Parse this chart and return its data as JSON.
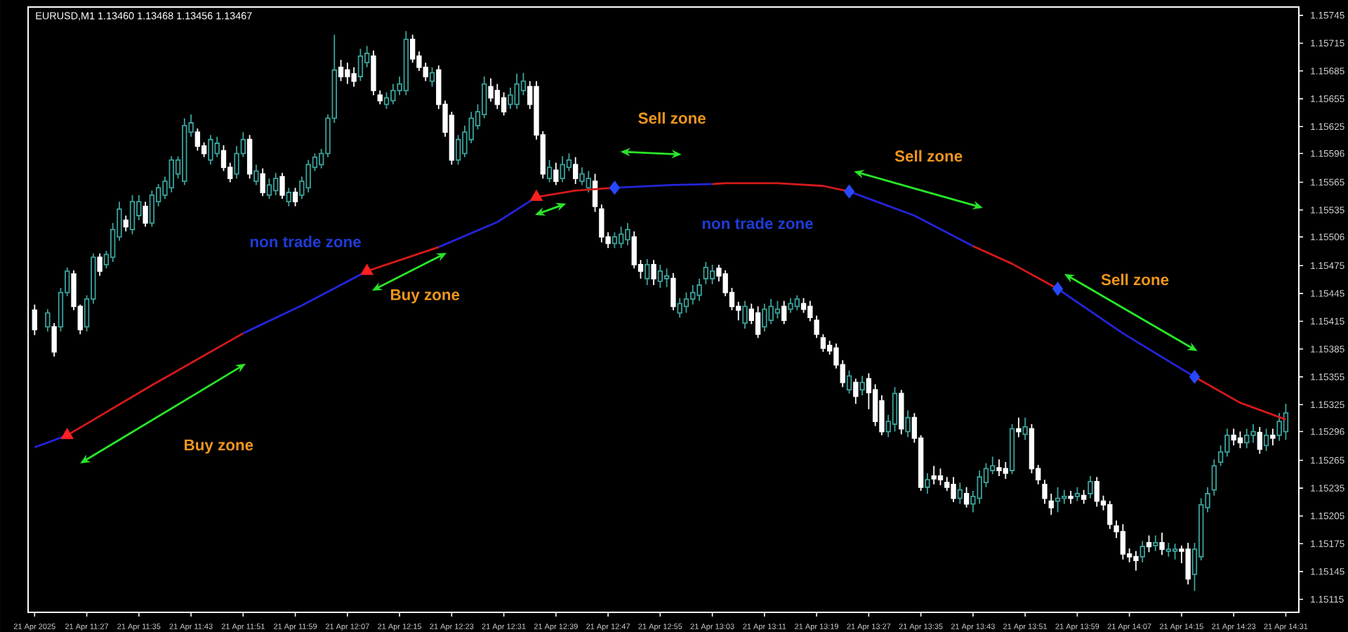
{
  "chart_data": {
    "type": "candlestick",
    "title": "EURUSD,M1 1.13460 1.13468 1.13456 1.13467",
    "annotations": [
      "Buy zone",
      "non trade zone",
      "Buy zone",
      "Sell zone",
      "non trade zone",
      "Sell zone",
      "Sell zone"
    ],
    "xlim": [
      "2025-04-21T11:18",
      "2025-04-21T14:33"
    ],
    "ylim": [
      1.15101,
      1.15754
    ],
    "xticks": [
      {
        "value": "2025-04-21T11:19",
        "label": "21 Apr 2025"
      },
      {
        "value": "2025-04-21T11:27",
        "label": "21 Apr 11:27"
      },
      {
        "value": "2025-04-21T11:35",
        "label": "21 Apr 11:35"
      },
      {
        "value": "2025-04-21T11:43",
        "label": "21 Apr 11:43"
      },
      {
        "value": "2025-04-21T11:51",
        "label": "21 Apr 11:51"
      },
      {
        "value": "2025-04-21T11:59",
        "label": "21 Apr 11:59"
      },
      {
        "value": "2025-04-21T12:07",
        "label": "21 Apr 12:07"
      },
      {
        "value": "2025-04-21T12:15",
        "label": "21 Apr 12:15"
      },
      {
        "value": "2025-04-21T12:23",
        "label": "21 Apr 12:23"
      },
      {
        "value": "2025-04-21T12:31",
        "label": "21 Apr 12:31"
      },
      {
        "value": "2025-04-21T12:39",
        "label": "21 Apr 12:39"
      },
      {
        "value": "2025-04-21T12:47",
        "label": "21 Apr 12:47"
      },
      {
        "value": "2025-04-21T12:55",
        "label": "21 Apr 12:55"
      },
      {
        "value": "2025-04-21T13:03",
        "label": "21 Apr 13:03"
      },
      {
        "value": "2025-04-21T13:11",
        "label": "21 Apr 13:11"
      },
      {
        "value": "2025-04-21T13:19",
        "label": "21 Apr 13:19"
      },
      {
        "value": "2025-04-21T13:27",
        "label": "21 Apr 13:27"
      },
      {
        "value": "2025-04-21T13:35",
        "label": "21 Apr 13:35"
      },
      {
        "value": "2025-04-21T13:43",
        "label": "21 Apr 13:43"
      },
      {
        "value": "2025-04-21T13:51",
        "label": "21 Apr 13:51"
      },
      {
        "value": "2025-04-21T13:59",
        "label": "21 Apr 13:59"
      },
      {
        "value": "2025-04-21T14:07",
        "label": "21 Apr 14:07"
      },
      {
        "value": "2025-04-21T14:15",
        "label": "21 Apr 14:15"
      },
      {
        "value": "2025-04-21T14:23",
        "label": "21 Apr 14:23"
      },
      {
        "value": "2025-04-21T14:31",
        "label": "21 Apr 14:31"
      }
    ],
    "yticks": [
      1.15745,
      1.15715,
      1.15685,
      1.15655,
      1.15625,
      1.15596,
      1.15565,
      1.15535,
      1.15506,
      1.15475,
      1.15445,
      1.15415,
      1.15385,
      1.15355,
      1.15325,
      1.15296,
      1.15265,
      1.15235,
      1.15205,
      1.15175,
      1.15145,
      1.15115
    ],
    "series": [
      {
        "colors": [
          "#ffffff",
          "#3aa39c",
          "#ffffff",
          "#3aa39c",
          "#3aa39c",
          "#ffffff",
          "#ffffff",
          "#3aa39c",
          "#3aa39c",
          "#ffffff",
          "#3aa39c",
          "#3aa39c",
          "#3aa39c",
          "#ffffff",
          "#3aa39c",
          "#3aa39c",
          "#ffffff",
          "#3aa39c",
          "#3aa39c",
          "#3aa39c",
          "#3aa39c",
          "#3aa39c",
          "#3aa39c",
          "#3aa39c",
          "#ffffff",
          "#ffffff",
          "#3aa39c",
          "#3aa39c",
          "#ffffff",
          "#ffffff",
          "#3aa39c",
          "#3aa39c",
          "#ffffff",
          "#3aa39c",
          "#ffffff",
          "#3aa39c",
          "#3aa39c",
          "#ffffff",
          "#3aa39c",
          "#ffffff",
          "#3aa39c",
          "#3aa39c",
          "#3aa39c",
          "#3aa39c",
          "#3aa39c",
          "#3aa39c",
          "#ffffff",
          "#ffffff",
          "#ffffff",
          "#3aa39c",
          "#3aa39c",
          "#ffffff",
          "#ffffff",
          "#3aa39c",
          "#3aa39c",
          "#3aa39c",
          "#3aa39c",
          "#ffffff",
          "#ffffff",
          "#ffffff",
          "#3aa39c",
          "#ffffff",
          "#ffffff",
          "#ffffff",
          "#3aa39c",
          "#3aa39c",
          "#3aa39c",
          "#3aa39c",
          "#3aa39c",
          "#ffffff",
          "#ffffff",
          "#ffffff",
          "#3aa39c",
          "#3aa39c",
          "#3aa39c",
          "#ffffff",
          "#ffffff",
          "#ffffff",
          "#3aa39c",
          "#ffffff",
          "#3aa39c",
          "#3aa39c",
          "#ffffff",
          "#3aa39c",
          "#3aa39c",
          "#ffffff",
          "#ffffff",
          "#ffffff",
          "#3aa39c",
          "#3aa39c",
          "#3aa39c",
          "#ffffff",
          "#ffffff",
          "#3aa39c",
          "#ffffff",
          "#3aa39c",
          "#3aa39c",
          "#ffffff",
          "#3aa39c",
          "#3aa39c",
          "#3aa39c",
          "#3aa39c",
          "#3aa39c",
          "#3aa39c",
          "#ffffff",
          "#ffffff",
          "#ffffff",
          "#ffffff",
          "#3aa39c",
          "#ffffff",
          "#ffffff",
          "#3aa39c",
          "#3aa39c",
          "#3aa39c",
          "#ffffff",
          "#3aa39c",
          "#3aa39c",
          "#ffffff",
          "#ffffff",
          "#ffffff",
          "#ffffff",
          "#ffffff",
          "#ffffff",
          "#ffffff",
          "#3aa39c",
          "#ffffff",
          "#3aa39c",
          "#ffffff",
          "#ffffff",
          "#ffffff",
          "#3aa39c",
          "#3aa39c",
          "#ffffff",
          "#3aa39c",
          "#ffffff",
          "#ffffff",
          "#3aa39c",
          "#ffffff",
          "#ffffff",
          "#ffffff",
          "#ffffff",
          "#3aa39c",
          "#ffffff",
          "#3aa39c",
          "#3aa39c",
          "#3aa39c",
          "#3aa39c",
          "#ffffff",
          "#ffffff",
          "#3aa39c",
          "#ffffff",
          "#3aa39c",
          "#ffffff",
          "#ffffff",
          "#ffffff",
          "#ffffff",
          "#3aa39c",
          "#3aa39c",
          "#ffffff",
          "#3aa39c",
          "#ffffff",
          "#3aa39c",
          "#ffffff",
          "#ffffff",
          "#ffffff",
          "#ffffff",
          "#ffffff",
          "#ffffff",
          "#ffffff",
          "#3aa39c",
          "#ffffff",
          "#3aa39c",
          "#ffffff",
          "#3aa39c",
          "#3aa39c",
          "#ffffff",
          "#ffffff",
          "#3aa39c",
          "#3aa39c",
          "#3aa39c",
          "#3aa39c",
          "#3aa39c",
          "#3aa39c",
          "#ffffff",
          "#ffffff",
          "#3aa39c",
          "#3aa39c",
          "#ffffff",
          "#3aa39c",
          "#ffffff",
          "#3aa39c",
          "#3aa39c"
        ],
        "x": [
          "2025-04-21T11:19",
          "2025-04-21T11:21",
          "2025-04-21T11:22",
          "2025-04-21T11:23",
          "2025-04-21T11:24",
          "2025-04-21T11:25",
          "2025-04-21T11:26",
          "2025-04-21T11:27",
          "2025-04-21T11:28",
          "2025-04-21T11:29",
          "2025-04-21T11:30",
          "2025-04-21T11:31",
          "2025-04-21T11:32",
          "2025-04-21T11:33",
          "2025-04-21T11:34",
          "2025-04-21T11:35",
          "2025-04-21T11:36",
          "2025-04-21T11:37",
          "2025-04-21T11:38",
          "2025-04-21T11:39",
          "2025-04-21T11:40",
          "2025-04-21T11:41",
          "2025-04-21T11:42",
          "2025-04-21T11:43",
          "2025-04-21T11:44",
          "2025-04-21T11:45",
          "2025-04-21T11:46",
          "2025-04-21T11:47",
          "2025-04-21T11:48",
          "2025-04-21T11:49",
          "2025-04-21T11:50",
          "2025-04-21T11:51",
          "2025-04-21T11:52",
          "2025-04-21T11:53",
          "2025-04-21T11:54",
          "2025-04-21T11:55",
          "2025-04-21T11:56",
          "2025-04-21T11:57",
          "2025-04-21T11:58",
          "2025-04-21T11:59",
          "2025-04-21T12:00",
          "2025-04-21T12:01",
          "2025-04-21T12:02",
          "2025-04-21T12:03",
          "2025-04-21T12:04",
          "2025-04-21T12:05",
          "2025-04-21T12:06",
          "2025-04-21T12:07",
          "2025-04-21T12:08",
          "2025-04-21T12:09",
          "2025-04-21T12:10",
          "2025-04-21T12:11",
          "2025-04-21T12:12",
          "2025-04-21T12:13",
          "2025-04-21T12:14",
          "2025-04-21T12:15",
          "2025-04-21T12:16",
          "2025-04-21T12:17",
          "2025-04-21T12:18",
          "2025-04-21T12:19",
          "2025-04-21T12:20",
          "2025-04-21T12:21",
          "2025-04-21T12:22",
          "2025-04-21T12:23",
          "2025-04-21T12:24",
          "2025-04-21T12:25",
          "2025-04-21T12:26",
          "2025-04-21T12:27",
          "2025-04-21T12:28",
          "2025-04-21T12:29",
          "2025-04-21T12:30",
          "2025-04-21T12:31",
          "2025-04-21T12:32",
          "2025-04-21T12:33",
          "2025-04-21T12:34",
          "2025-04-21T12:35",
          "2025-04-21T12:36",
          "2025-04-21T12:37",
          "2025-04-21T12:38",
          "2025-04-21T12:39",
          "2025-04-21T12:40",
          "2025-04-21T12:41",
          "2025-04-21T12:42",
          "2025-04-21T12:43",
          "2025-04-21T12:44",
          "2025-04-21T12:45",
          "2025-04-21T12:46",
          "2025-04-21T12:47",
          "2025-04-21T12:48",
          "2025-04-21T12:49",
          "2025-04-21T12:50",
          "2025-04-21T12:51",
          "2025-04-21T12:52",
          "2025-04-21T12:53",
          "2025-04-21T12:54",
          "2025-04-21T12:55",
          "2025-04-21T12:56",
          "2025-04-21T12:57",
          "2025-04-21T12:58",
          "2025-04-21T12:59",
          "2025-04-21T13:00",
          "2025-04-21T13:01",
          "2025-04-21T13:02",
          "2025-04-21T13:03",
          "2025-04-21T13:04",
          "2025-04-21T13:05",
          "2025-04-21T13:06",
          "2025-04-21T13:07",
          "2025-04-21T13:08",
          "2025-04-21T13:09",
          "2025-04-21T13:10",
          "2025-04-21T13:11",
          "2025-04-21T13:12",
          "2025-04-21T13:13",
          "2025-04-21T13:14",
          "2025-04-21T13:15",
          "2025-04-21T13:16",
          "2025-04-21T13:17",
          "2025-04-21T13:18",
          "2025-04-21T13:19",
          "2025-04-21T13:20",
          "2025-04-21T13:21",
          "2025-04-21T13:22",
          "2025-04-21T13:23",
          "2025-04-21T13:24",
          "2025-04-21T13:25",
          "2025-04-21T13:26",
          "2025-04-21T13:27",
          "2025-04-21T13:28",
          "2025-04-21T13:29",
          "2025-04-21T13:30",
          "2025-04-21T13:31",
          "2025-04-21T13:32",
          "2025-04-21T13:33",
          "2025-04-21T13:34",
          "2025-04-21T13:35",
          "2025-04-21T13:36",
          "2025-04-21T13:37",
          "2025-04-21T13:38",
          "2025-04-21T13:39",
          "2025-04-21T13:40",
          "2025-04-21T13:41",
          "2025-04-21T13:42",
          "2025-04-21T13:43",
          "2025-04-21T13:44",
          "2025-04-21T13:45",
          "2025-04-21T13:46",
          "2025-04-21T13:47",
          "2025-04-21T13:48",
          "2025-04-21T13:49",
          "2025-04-21T13:50",
          "2025-04-21T13:51",
          "2025-04-21T13:52",
          "2025-04-21T13:53",
          "2025-04-21T13:54",
          "2025-04-21T13:55",
          "2025-04-21T13:56",
          "2025-04-21T13:57",
          "2025-04-21T13:58",
          "2025-04-21T13:59",
          "2025-04-21T14:00",
          "2025-04-21T14:01",
          "2025-04-21T14:02",
          "2025-04-21T14:03",
          "2025-04-21T14:04",
          "2025-04-21T14:05",
          "2025-04-21T14:06",
          "2025-04-21T14:07",
          "2025-04-21T14:08",
          "2025-04-21T14:09",
          "2025-04-21T14:10",
          "2025-04-21T14:11",
          "2025-04-21T14:12",
          "2025-04-21T14:13",
          "2025-04-21T14:14",
          "2025-04-21T14:15",
          "2025-04-21T14:16",
          "2025-04-21T14:17",
          "2025-04-21T14:18",
          "2025-04-21T14:19",
          "2025-04-21T14:20",
          "2025-04-21T14:21",
          "2025-04-21T14:22",
          "2025-04-21T14:23",
          "2025-04-21T14:24",
          "2025-04-21T14:25",
          "2025-04-21T14:26",
          "2025-04-21T14:27",
          "2025-04-21T14:28",
          "2025-04-21T14:29",
          "2025-04-21T14:30",
          "2025-04-21T14:31"
        ],
        "ohlc": [
          [
            1.15427,
            1.15433,
            1.154,
            1.15406
          ],
          [
            1.15409,
            1.15428,
            1.15404,
            1.15424
          ],
          [
            1.15409,
            1.15413,
            1.15377,
            1.15382
          ],
          [
            1.15409,
            1.15451,
            1.15404,
            1.15446
          ],
          [
            1.15446,
            1.15473,
            1.15442,
            1.15469
          ],
          [
            1.15466,
            1.1547,
            1.15427,
            1.15431
          ],
          [
            1.15431,
            1.15433,
            1.15401,
            1.15406
          ],
          [
            1.15409,
            1.15443,
            1.15404,
            1.15439
          ],
          [
            1.15439,
            1.15488,
            1.15434,
            1.15484
          ],
          [
            1.15484,
            1.15488,
            1.15464,
            1.15469
          ],
          [
            1.15476,
            1.15491,
            1.15472,
            1.15487
          ],
          [
            1.15484,
            1.15521,
            1.15479,
            1.15514
          ],
          [
            1.15506,
            1.15544,
            1.15502,
            1.15536
          ],
          [
            1.15524,
            1.15529,
            1.15512,
            1.15517
          ],
          [
            1.15514,
            1.15551,
            1.15509,
            1.15544
          ],
          [
            1.15529,
            1.15551,
            1.15524,
            1.15544
          ],
          [
            1.15539,
            1.15544,
            1.15517,
            1.15521
          ],
          [
            1.15521,
            1.15556,
            1.15517,
            1.15551
          ],
          [
            1.15544,
            1.15563,
            1.15539,
            1.15559
          ],
          [
            1.15551,
            1.15571,
            1.15547,
            1.15566
          ],
          [
            1.15559,
            1.15593,
            1.15554,
            1.15589
          ],
          [
            1.15574,
            1.15593,
            1.15569,
            1.15589
          ],
          [
            1.15566,
            1.15634,
            1.15562,
            1.15626
          ],
          [
            1.15619,
            1.15638,
            1.15614,
            1.15629
          ],
          [
            1.15619,
            1.15623,
            1.15599,
            1.15604
          ],
          [
            1.15604,
            1.15608,
            1.15592,
            1.15596
          ],
          [
            1.15589,
            1.15616,
            1.15584,
            1.15611
          ],
          [
            1.15596,
            1.15614,
            1.15592,
            1.15607
          ],
          [
            1.15599,
            1.15605,
            1.15577,
            1.15581
          ],
          [
            1.15581,
            1.15586,
            1.15565,
            1.15569
          ],
          [
            1.15574,
            1.15604,
            1.15569,
            1.15596
          ],
          [
            1.15596,
            1.15619,
            1.15592,
            1.15611
          ],
          [
            1.15611,
            1.15616,
            1.15569,
            1.15574
          ],
          [
            1.15566,
            1.15584,
            1.15562,
            1.15577
          ],
          [
            1.15574,
            1.1558,
            1.1555,
            1.15554
          ],
          [
            1.15551,
            1.15569,
            1.15547,
            1.15562
          ],
          [
            1.15556,
            1.15575,
            1.15551,
            1.15569
          ],
          [
            1.15571,
            1.15575,
            1.15547,
            1.15551
          ],
          [
            1.15544,
            1.15559,
            1.15539,
            1.15554
          ],
          [
            1.15554,
            1.15559,
            1.15539,
            1.15544
          ],
          [
            1.15551,
            1.15571,
            1.15547,
            1.15566
          ],
          [
            1.15559,
            1.15589,
            1.15554,
            1.15584
          ],
          [
            1.15581,
            1.15596,
            1.15577,
            1.15592
          ],
          [
            1.15584,
            1.15601,
            1.1558,
            1.15596
          ],
          [
            1.15596,
            1.15638,
            1.15592,
            1.15634
          ],
          [
            1.15634,
            1.15724,
            1.15629,
            1.15686
          ],
          [
            1.15689,
            1.15697,
            1.15674,
            1.15679
          ],
          [
            1.15686,
            1.15694,
            1.15671,
            1.15679
          ],
          [
            1.15682,
            1.15689,
            1.15668,
            1.15674
          ],
          [
            1.15679,
            1.15709,
            1.15674,
            1.15701
          ],
          [
            1.15694,
            1.15712,
            1.15689,
            1.15704
          ],
          [
            1.15701,
            1.15707,
            1.15659,
            1.15664
          ],
          [
            1.15659,
            1.15664,
            1.15649,
            1.15653
          ],
          [
            1.15649,
            1.15662,
            1.15644,
            1.15656
          ],
          [
            1.15653,
            1.15671,
            1.15649,
            1.15664
          ],
          [
            1.15664,
            1.15679,
            1.15659,
            1.15671
          ],
          [
            1.15664,
            1.15728,
            1.15659,
            1.15719
          ],
          [
            1.15719,
            1.15724,
            1.15694,
            1.15698
          ],
          [
            1.15701,
            1.15706,
            1.15685,
            1.15689
          ],
          [
            1.15689,
            1.15694,
            1.15674,
            1.15679
          ],
          [
            1.15674,
            1.15689,
            1.15668,
            1.15683
          ],
          [
            1.15686,
            1.15691,
            1.15644,
            1.15649
          ],
          [
            1.15649,
            1.15653,
            1.15614,
            1.15619
          ],
          [
            1.15637,
            1.15641,
            1.15584,
            1.15589
          ],
          [
            1.15589,
            1.15616,
            1.15584,
            1.15611
          ],
          [
            1.15596,
            1.15626,
            1.15592,
            1.15619
          ],
          [
            1.15611,
            1.15641,
            1.15607,
            1.15634
          ],
          [
            1.15626,
            1.15649,
            1.15622,
            1.15641
          ],
          [
            1.15638,
            1.15679,
            1.15634,
            1.15671
          ],
          [
            1.15668,
            1.15677,
            1.15652,
            1.15656
          ],
          [
            1.15664,
            1.15671,
            1.15644,
            1.15649
          ],
          [
            1.15656,
            1.15662,
            1.15637,
            1.15641
          ],
          [
            1.15649,
            1.15667,
            1.15644,
            1.15659
          ],
          [
            1.15649,
            1.15682,
            1.15644,
            1.15671
          ],
          [
            1.15664,
            1.15683,
            1.15659,
            1.15674
          ],
          [
            1.15668,
            1.15674,
            1.15644,
            1.15649
          ],
          [
            1.15668,
            1.15674,
            1.15611,
            1.15616
          ],
          [
            1.15616,
            1.1562,
            1.15569,
            1.15574
          ],
          [
            1.15569,
            1.15589,
            1.15565,
            1.15581
          ],
          [
            1.15578,
            1.15586,
            1.15562,
            1.15566
          ],
          [
            1.15569,
            1.15593,
            1.15565,
            1.15584
          ],
          [
            1.15581,
            1.15596,
            1.15577,
            1.15589
          ],
          [
            1.15584,
            1.15592,
            1.15563,
            1.15569
          ],
          [
            1.15566,
            1.15581,
            1.15562,
            1.15574
          ],
          [
            1.15559,
            1.15577,
            1.15554,
            1.15569
          ],
          [
            1.15566,
            1.15574,
            1.15533,
            1.15539
          ],
          [
            1.15536,
            1.15541,
            1.155,
            1.15506
          ],
          [
            1.15506,
            1.15511,
            1.15494,
            1.15499
          ],
          [
            1.15499,
            1.15511,
            1.15494,
            1.15506
          ],
          [
            1.15499,
            1.15517,
            1.15494,
            1.15509
          ],
          [
            1.15503,
            1.15521,
            1.15497,
            1.15514
          ],
          [
            1.15506,
            1.15512,
            1.15472,
            1.15476
          ],
          [
            1.15476,
            1.15481,
            1.15461,
            1.15469
          ],
          [
            1.15461,
            1.15482,
            1.15454,
            1.15476
          ],
          [
            1.15476,
            1.15481,
            1.15454,
            1.15461
          ],
          [
            1.15458,
            1.15476,
            1.15451,
            1.15469
          ],
          [
            1.15461,
            1.15472,
            1.15452,
            1.15464
          ],
          [
            1.15461,
            1.15467,
            1.15427,
            1.15431
          ],
          [
            1.15424,
            1.1544,
            1.15419,
            1.15434
          ],
          [
            1.15431,
            1.15446,
            1.15424,
            1.15439
          ],
          [
            1.15439,
            1.15454,
            1.15433,
            1.15446
          ],
          [
            1.15443,
            1.15461,
            1.15437,
            1.15454
          ],
          [
            1.15461,
            1.15479,
            1.15455,
            1.15473
          ],
          [
            1.15461,
            1.15476,
            1.15455,
            1.15469
          ],
          [
            1.15472,
            1.15476,
            1.15458,
            1.15464
          ],
          [
            1.15466,
            1.1547,
            1.15442,
            1.15446
          ],
          [
            1.15446,
            1.15451,
            1.15427,
            1.15431
          ],
          [
            1.15431,
            1.15436,
            1.15416,
            1.15427
          ],
          [
            1.15413,
            1.15437,
            1.15407,
            1.15431
          ],
          [
            1.15428,
            1.15434,
            1.15412,
            1.15416
          ],
          [
            1.15424,
            1.15431,
            1.15397,
            1.15401
          ],
          [
            1.15409,
            1.15434,
            1.15404,
            1.15428
          ],
          [
            1.15416,
            1.15439,
            1.15412,
            1.15431
          ],
          [
            1.15424,
            1.15437,
            1.15418,
            1.15428
          ],
          [
            1.15431,
            1.15437,
            1.15412,
            1.15416
          ],
          [
            1.15428,
            1.1544,
            1.15424,
            1.15434
          ],
          [
            1.15431,
            1.15443,
            1.15427,
            1.15439
          ],
          [
            1.15434,
            1.1544,
            1.15424,
            1.15428
          ],
          [
            1.15431,
            1.15437,
            1.15415,
            1.15419
          ],
          [
            1.15416,
            1.15421,
            1.15397,
            1.15401
          ],
          [
            1.15397,
            1.15401,
            1.15382,
            1.15386
          ],
          [
            1.15389,
            1.15394,
            1.15379,
            1.15383
          ],
          [
            1.15386,
            1.15391,
            1.15364,
            1.15368
          ],
          [
            1.15368,
            1.15373,
            1.15344,
            1.15349
          ],
          [
            1.15341,
            1.15362,
            1.15337,
            1.15356
          ],
          [
            1.15349,
            1.15353,
            1.15326,
            1.15334
          ],
          [
            1.15341,
            1.15356,
            1.15335,
            1.15349
          ],
          [
            1.15353,
            1.15359,
            1.1532,
            1.15338
          ],
          [
            1.15341,
            1.15347,
            1.15302,
            1.15307
          ],
          [
            1.15329,
            1.15335,
            1.15292,
            1.15296
          ],
          [
            1.15296,
            1.15314,
            1.1529,
            1.15307
          ],
          [
            1.15304,
            1.15344,
            1.15296,
            1.15337
          ],
          [
            1.15337,
            1.15341,
            1.15293,
            1.15299
          ],
          [
            1.15296,
            1.15319,
            1.1529,
            1.15311
          ],
          [
            1.15311,
            1.15316,
            1.15284,
            1.15289
          ],
          [
            1.15289,
            1.15292,
            1.15232,
            1.15236
          ],
          [
            1.15236,
            1.15251,
            1.15229,
            1.15244
          ],
          [
            1.15248,
            1.15259,
            1.15239,
            1.15245
          ],
          [
            1.15248,
            1.15256,
            1.15238,
            1.15244
          ],
          [
            1.15241,
            1.15247,
            1.15232,
            1.15236
          ],
          [
            1.15239,
            1.15247,
            1.1522,
            1.15224
          ],
          [
            1.15224,
            1.15241,
            1.15218,
            1.15233
          ],
          [
            1.15229,
            1.15236,
            1.15214,
            1.15218
          ],
          [
            1.15218,
            1.15232,
            1.15209,
            1.15226
          ],
          [
            1.15224,
            1.15254,
            1.15218,
            1.15247
          ],
          [
            1.15241,
            1.15262,
            1.15236,
            1.15256
          ],
          [
            1.15254,
            1.15269,
            1.1525,
            1.15259
          ],
          [
            1.15257,
            1.15266,
            1.15248,
            1.15254
          ],
          [
            1.15256,
            1.15263,
            1.15245,
            1.15251
          ],
          [
            1.15254,
            1.15304,
            1.1525,
            1.15299
          ],
          [
            1.15299,
            1.15311,
            1.1529,
            1.15296
          ],
          [
            1.15293,
            1.15311,
            1.15287,
            1.15301
          ],
          [
            1.15299,
            1.15304,
            1.15251,
            1.15256
          ],
          [
            1.15256,
            1.1526,
            1.15239,
            1.15244
          ],
          [
            1.15239,
            1.15244,
            1.15218,
            1.15224
          ],
          [
            1.15221,
            1.15229,
            1.15206,
            1.15214
          ],
          [
            1.15221,
            1.15236,
            1.15209,
            1.15224
          ],
          [
            1.15224,
            1.15233,
            1.15218,
            1.15226
          ],
          [
            1.15226,
            1.15232,
            1.15218,
            1.15224
          ],
          [
            1.15226,
            1.15236,
            1.15221,
            1.15229
          ],
          [
            1.15227,
            1.15233,
            1.15218,
            1.15223
          ],
          [
            1.15229,
            1.15248,
            1.15224,
            1.15242
          ],
          [
            1.15242,
            1.15247,
            1.15215,
            1.15221
          ],
          [
            1.15221,
            1.15227,
            1.15211,
            1.15217
          ],
          [
            1.15217,
            1.15221,
            1.15191,
            1.15196
          ],
          [
            1.15194,
            1.152,
            1.15181,
            1.15188
          ],
          [
            1.15188,
            1.15196,
            1.15158,
            1.15164
          ],
          [
            1.15164,
            1.1517,
            1.15155,
            1.15161
          ],
          [
            1.15161,
            1.15167,
            1.15146,
            1.15157
          ],
          [
            1.15161,
            1.15178,
            1.15155,
            1.15172
          ],
          [
            1.15176,
            1.15184,
            1.15166,
            1.15172
          ],
          [
            1.15173,
            1.15184,
            1.15167,
            1.15176
          ],
          [
            1.15176,
            1.15187,
            1.15163,
            1.15169
          ],
          [
            1.15167,
            1.15176,
            1.15161,
            1.15169
          ],
          [
            1.15167,
            1.15175,
            1.15158,
            1.15169
          ],
          [
            1.15169,
            1.15173,
            1.15154,
            1.15167
          ],
          [
            1.15169,
            1.15176,
            1.15131,
            1.15137
          ],
          [
            1.15142,
            1.15176,
            1.15124,
            1.15169
          ],
          [
            1.15161,
            1.15224,
            1.15157,
            1.15217
          ],
          [
            1.15214,
            1.15236,
            1.15209,
            1.15229
          ],
          [
            1.15233,
            1.15266,
            1.15227,
            1.15259
          ],
          [
            1.15263,
            1.15281,
            1.15259,
            1.15274
          ],
          [
            1.15274,
            1.15299,
            1.15269,
            1.15292
          ],
          [
            1.15292,
            1.15299,
            1.15281,
            1.15287
          ],
          [
            1.15289,
            1.15296,
            1.15278,
            1.15284
          ],
          [
            1.15284,
            1.15299,
            1.15278,
            1.15292
          ],
          [
            1.15292,
            1.15304,
            1.15284,
            1.15296
          ],
          [
            1.15295,
            1.15301,
            1.15272,
            1.15277
          ],
          [
            1.15281,
            1.15299,
            1.15275,
            1.15292
          ],
          [
            1.15292,
            1.15299,
            1.15281,
            1.15289
          ],
          [
            1.15292,
            1.15316,
            1.15286,
            1.15307
          ],
          [
            1.15296,
            1.15326,
            1.15287,
            1.15316
          ]
        ]
      },
      {
        "type": "line",
        "color": "#2424d8",
        "x": [
          "2025-04-21T11:19",
          "2025-04-21T11:24"
        ],
        "values": [
          1.15279,
          1.15292
        ]
      },
      {
        "type": "line",
        "color": "#d41a1a",
        "x": [
          "2025-04-21T11:24",
          "2025-04-21T11:37",
          "2025-04-21T11:51"
        ],
        "values": [
          1.15292,
          1.15346,
          1.15402
        ]
      },
      {
        "type": "line",
        "color": "#2424d8",
        "x": [
          "2025-04-21T11:51",
          "2025-04-21T12:00",
          "2025-04-21T12:10"
        ],
        "values": [
          1.15402,
          1.15432,
          1.15469
        ]
      },
      {
        "type": "line",
        "color": "#d41a1a",
        "x": [
          "2025-04-21T12:10",
          "2025-04-21T12:21"
        ],
        "values": [
          1.15469,
          1.15495
        ]
      },
      {
        "type": "line",
        "color": "#2424d8",
        "x": [
          "2025-04-21T12:21",
          "2025-04-21T12:30",
          "2025-04-21T12:36"
        ],
        "values": [
          1.15495,
          1.15522,
          1.15549
        ]
      },
      {
        "type": "line",
        "color": "#d41a1a",
        "x": [
          "2025-04-21T12:36",
          "2025-04-21T12:42",
          "2025-04-21T12:48"
        ],
        "values": [
          1.15549,
          1.15556,
          1.15559
        ]
      },
      {
        "type": "line",
        "color": "#2424d8",
        "x": [
          "2025-04-21T12:48",
          "2025-04-21T12:57",
          "2025-04-21T13:03"
        ],
        "values": [
          1.15559,
          1.15562,
          1.15563
        ]
      },
      {
        "type": "line",
        "color": "#d41a1a",
        "x": [
          "2025-04-21T13:03",
          "2025-04-21T13:05",
          "2025-04-21T13:13",
          "2025-04-21T13:20",
          "2025-04-21T13:24"
        ],
        "values": [
          1.15563,
          1.15564,
          1.15564,
          1.15561,
          1.15555
        ]
      },
      {
        "type": "line",
        "color": "#2424d8",
        "x": [
          "2025-04-21T13:24",
          "2025-04-21T13:34",
          "2025-04-21T13:43"
        ],
        "values": [
          1.15555,
          1.15529,
          1.15496
        ]
      },
      {
        "type": "line",
        "color": "#d41a1a",
        "x": [
          "2025-04-21T13:43",
          "2025-04-21T13:49",
          "2025-04-21T13:56"
        ],
        "values": [
          1.15496,
          1.15477,
          1.1545
        ]
      },
      {
        "type": "line",
        "color": "#2424d8",
        "x": [
          "2025-04-21T13:56",
          "2025-04-21T14:06",
          "2025-04-21T14:17"
        ],
        "values": [
          1.1545,
          1.15402,
          1.15355
        ]
      },
      {
        "type": "line",
        "color": "#d41a1a",
        "x": [
          "2025-04-21T14:17",
          "2025-04-21T14:24",
          "2025-04-21T14:31"
        ],
        "values": [
          1.15355,
          1.15327,
          1.15309
        ]
      },
      {
        "type": "scatter",
        "marker": "triangle",
        "color": "#ff2020",
        "x": [
          "2025-04-21T11:24",
          "2025-04-21T12:10",
          "2025-04-21T12:36"
        ],
        "values": [
          1.15292,
          1.15469,
          1.15549
        ]
      },
      {
        "type": "scatter",
        "marker": "diamond",
        "color": "#2848ff",
        "x": [
          "2025-04-21T12:48",
          "2025-04-21T13:24",
          "2025-04-21T13:56",
          "2025-04-21T14:17"
        ],
        "values": [
          1.15559,
          1.15555,
          1.1545,
          1.15355
        ]
      }
    ]
  }
}
